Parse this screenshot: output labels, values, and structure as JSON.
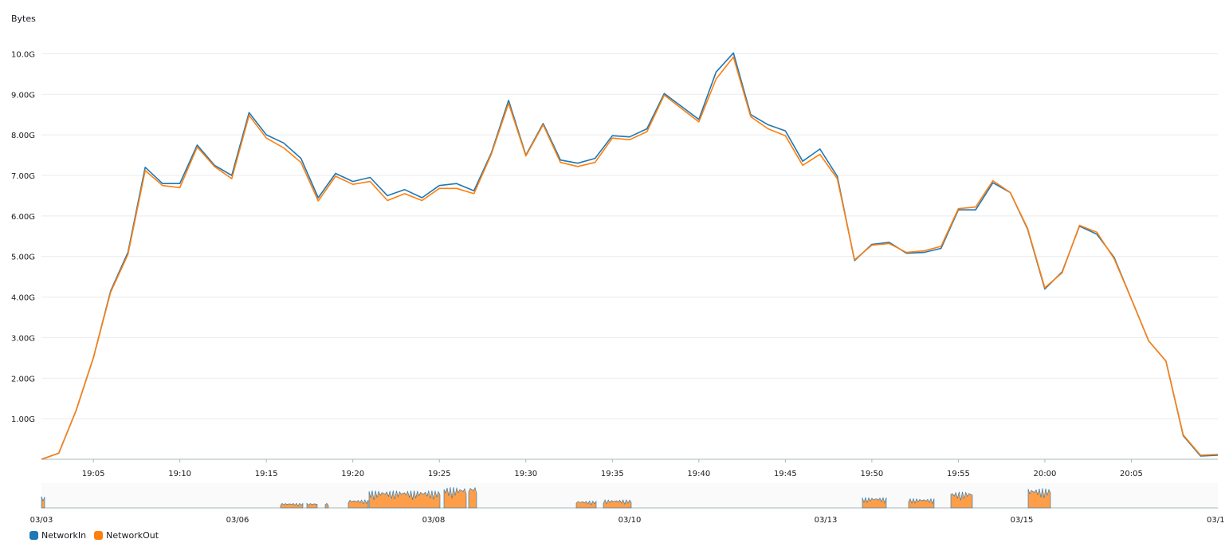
{
  "chart_data": {
    "type": "line",
    "ylabel": "Bytes",
    "ylim": [
      0,
      10.5
    ],
    "y_ticks": [
      {
        "v": 1,
        "label": "1.00G"
      },
      {
        "v": 2,
        "label": "2.00G"
      },
      {
        "v": 3,
        "label": "3.00G"
      },
      {
        "v": 4,
        "label": "4.00G"
      },
      {
        "v": 5,
        "label": "5.00G"
      },
      {
        "v": 6,
        "label": "6.00G"
      },
      {
        "v": 7,
        "label": "7.00G"
      },
      {
        "v": 8,
        "label": "8.00G"
      },
      {
        "v": 9,
        "label": "9.00G"
      },
      {
        "v": 10,
        "label": "10.0G"
      }
    ],
    "x_ticks": [
      "19:05",
      "19:10",
      "19:15",
      "19:20",
      "19:25",
      "19:30",
      "19:35",
      "19:40",
      "19:45",
      "19:50",
      "19:55",
      "20:00",
      "20:05"
    ],
    "x_start": "19:02",
    "x_step_minutes": 1,
    "grid": true,
    "series": [
      {
        "name": "NetworkIn",
        "color": "#1f77b4",
        "values": [
          0.0,
          0.15,
          1.2,
          2.5,
          4.15,
          5.1,
          7.2,
          6.8,
          6.8,
          7.75,
          7.25,
          7.0,
          8.55,
          8.0,
          7.8,
          7.42,
          6.45,
          7.05,
          6.85,
          6.95,
          6.5,
          6.65,
          6.45,
          6.75,
          6.8,
          6.62,
          7.55,
          8.85,
          7.5,
          8.28,
          7.38,
          7.3,
          7.42,
          7.98,
          7.95,
          8.15,
          9.02,
          8.7,
          8.38,
          9.55,
          10.02,
          8.5,
          8.25,
          8.1,
          7.35,
          7.65,
          6.98,
          4.9,
          5.3,
          5.35,
          5.08,
          5.1,
          5.2,
          6.15,
          6.15,
          6.82,
          6.58,
          5.68,
          4.2,
          4.62,
          5.75,
          5.55,
          4.98,
          3.95,
          2.92,
          2.42,
          0.58,
          0.08,
          0.1
        ]
      },
      {
        "name": "NetworkOut",
        "color": "#ff7f0e",
        "values": [
          0.0,
          0.15,
          1.2,
          2.5,
          4.12,
          5.05,
          7.12,
          6.75,
          6.7,
          7.7,
          7.22,
          6.92,
          8.48,
          7.92,
          7.68,
          7.32,
          6.37,
          6.98,
          6.78,
          6.85,
          6.38,
          6.55,
          6.38,
          6.68,
          6.68,
          6.55,
          7.52,
          8.78,
          7.48,
          8.25,
          7.32,
          7.22,
          7.32,
          7.92,
          7.88,
          8.08,
          8.98,
          8.65,
          8.32,
          9.38,
          9.92,
          8.45,
          8.15,
          7.98,
          7.25,
          7.52,
          6.92,
          4.92,
          5.28,
          5.32,
          5.1,
          5.14,
          5.25,
          6.18,
          6.22,
          6.87,
          6.58,
          5.7,
          4.23,
          4.6,
          5.77,
          5.6,
          4.95,
          3.95,
          2.92,
          2.42,
          0.6,
          0.1,
          0.12
        ]
      }
    ],
    "navigator": {
      "x_ticks": [
        "03/03",
        "03/06",
        "03/08",
        "03/10",
        "03/13",
        "03/15",
        "03/1"
      ]
    }
  }
}
